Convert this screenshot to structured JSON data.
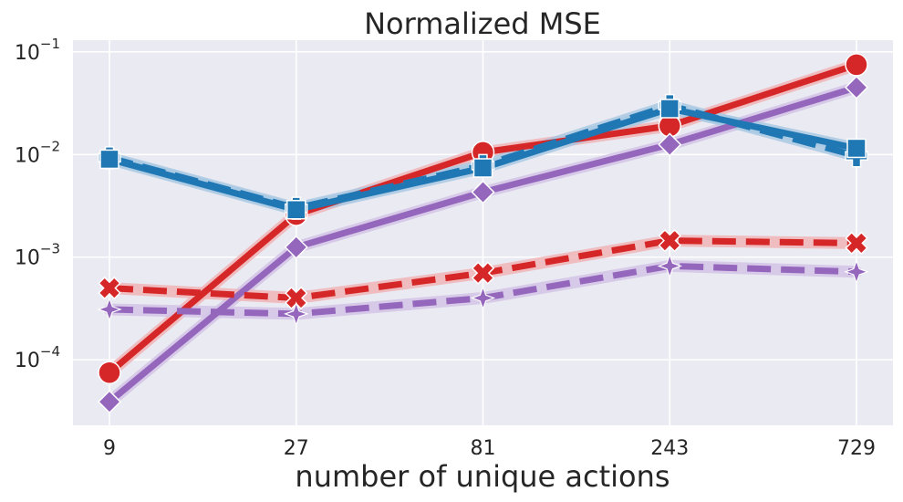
{
  "chart_data": {
    "type": "line",
    "title": "Normalized MSE",
    "xlabel": "number of unique actions",
    "ylabel": "",
    "x_scale": "log",
    "y_scale": "log",
    "x": [
      9,
      27,
      81,
      243,
      729
    ],
    "x_tick_labels": [
      "9",
      "27",
      "81",
      "243",
      "729"
    ],
    "ylim": [
      2.3e-05,
      0.13
    ],
    "y_ticks": [
      {
        "value": 0.0001,
        "base": "10",
        "exp": "−4"
      },
      {
        "value": 0.001,
        "base": "10",
        "exp": "−3"
      },
      {
        "value": 0.01,
        "base": "10",
        "exp": "−2"
      },
      {
        "value": 0.1,
        "base": "10",
        "exp": "−1"
      }
    ],
    "grid": true,
    "legend": "none",
    "series": [
      {
        "color": "#d62728",
        "band": "#f0b4b6",
        "dash": "solid",
        "marker": "circle",
        "values": [
          7.5e-05,
          0.0026,
          0.0105,
          0.019,
          0.075
        ]
      },
      {
        "color": "#9467bd",
        "band": "#d4c3e6",
        "dash": "solid",
        "marker": "diamond",
        "values": [
          3.9e-05,
          0.00125,
          0.0043,
          0.0125,
          0.045
        ]
      },
      {
        "color": "#1f77b4",
        "band": "#a9c9e3",
        "dash": "dashed",
        "marker": "plus",
        "values": [
          0.0093,
          0.003,
          0.0078,
          0.03,
          0.0097
        ]
      },
      {
        "color": "#1f77b4",
        "band": "#a9c9e3",
        "dash": "solid",
        "marker": "square",
        "values": [
          0.009,
          0.0029,
          0.0074,
          0.028,
          0.0115
        ]
      },
      {
        "color": "#d62728",
        "band": "#f0b4b6",
        "dash": "dashed",
        "marker": "x",
        "values": [
          0.0005,
          0.0004,
          0.0007,
          0.00145,
          0.00137
        ]
      },
      {
        "color": "#9467bd",
        "band": "#d4c3e6",
        "dash": "dashed",
        "marker": "star4",
        "values": [
          0.00031,
          0.00028,
          0.0004,
          0.00082,
          0.00072
        ]
      }
    ]
  }
}
